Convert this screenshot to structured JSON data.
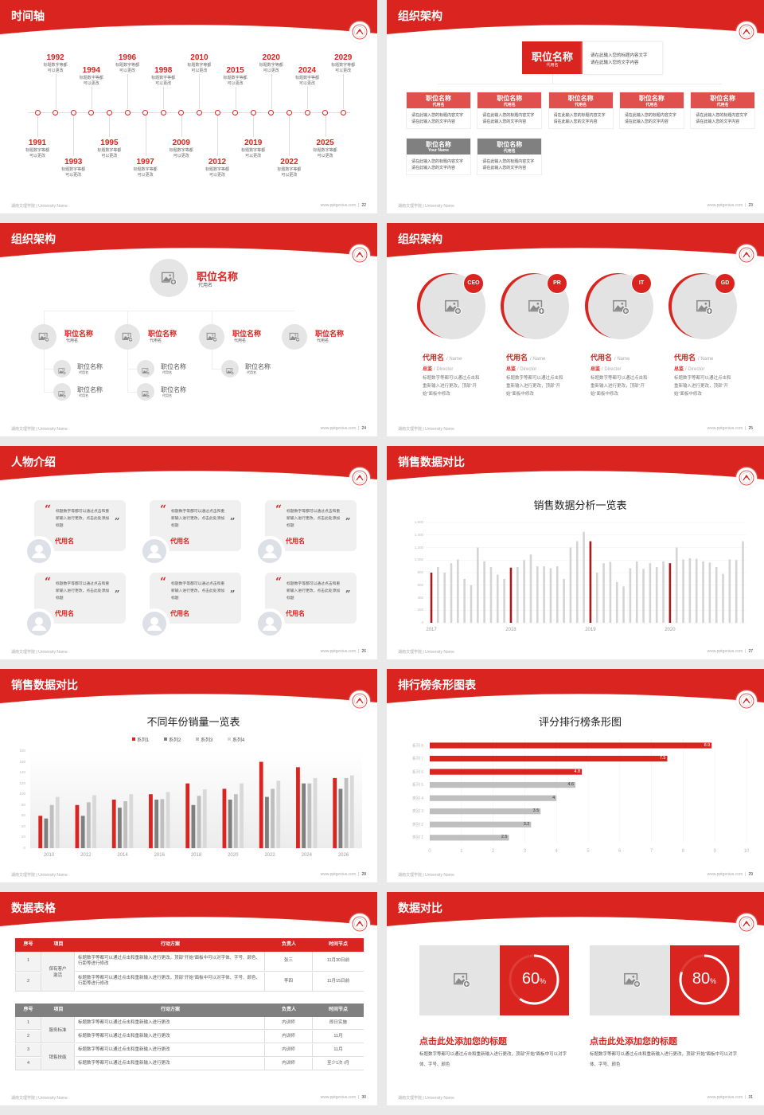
{
  "colors": {
    "accent": "#d9241f",
    "accent_dark": "#a8191a",
    "card_red": "#e0504c",
    "gray": "#808080",
    "light_gray": "#c8c8c8",
    "bg": "#e9e9e9"
  },
  "footer": {
    "school": "湖南文理学院 | University Name",
    "site": "www.pptgenius.com"
  },
  "slides": [
    {
      "type": "timeline",
      "title": "时间轴",
      "page": "22",
      "items": [
        {
          "year": "1991",
          "desc": "标题数字等都可以更改"
        },
        {
          "year": "1992",
          "desc": "标题数字等都可以更改"
        },
        {
          "year": "1993",
          "desc": "标题数字等都可以更改"
        },
        {
          "year": "1994",
          "desc": "标题数字等都可以更改"
        },
        {
          "year": "1995",
          "desc": "标题数字等都可以更改"
        },
        {
          "year": "1996",
          "desc": "标题数字等都可以更改"
        },
        {
          "year": "1997",
          "desc": "标题数字等都可以更改"
        },
        {
          "year": "1998",
          "desc": "标题数字等都可以更改"
        },
        {
          "year": "2009",
          "desc": "标题数字等都可以更改"
        },
        {
          "year": "2010",
          "desc": "标题数字等都可以更改"
        },
        {
          "year": "2012",
          "desc": "标题数字等都可以更改"
        },
        {
          "year": "2015",
          "desc": "标题数字等都可以更改"
        },
        {
          "year": "2019",
          "desc": "标题数字等都可以更改"
        },
        {
          "year": "2020",
          "desc": "标题数字等都可以更改"
        },
        {
          "year": "2022",
          "desc": "标题数字等都可以更改"
        },
        {
          "year": "2024",
          "desc": "标题数字等都可以更改"
        },
        {
          "year": "2025",
          "desc": "标题数字等都可以更改"
        },
        {
          "year": "2029",
          "desc": "标题数字等都可以更改"
        }
      ]
    },
    {
      "type": "org_boxes",
      "title": "组织架构",
      "page": "23",
      "top": {
        "title": "职位名称",
        "sub": "代用名",
        "desc": [
          "请在此输入您的标题内容文字",
          "请在此输入您的文字内容"
        ]
      },
      "cards": [
        {
          "title": "职位名称",
          "sub": "代用名",
          "desc": [
            "请在此输入您的标题内容文字",
            "请在此输入您的文字内容"
          ],
          "style": "red"
        },
        {
          "title": "职位名称",
          "sub": "代用名",
          "desc": [
            "请在此输入您的标题内容文字",
            "请在此输入您的文字内容"
          ],
          "style": "red"
        },
        {
          "title": "职位名称",
          "sub": "代用名",
          "desc": [
            "请在此输入您的标题内容文字",
            "请在此输入您的文字内容"
          ],
          "style": "red"
        },
        {
          "title": "职位名称",
          "sub": "代用名",
          "desc": [
            "请在此输入您的标题内容文字",
            "请在此输入您的文字内容"
          ],
          "style": "red"
        },
        {
          "title": "职位名称",
          "sub": "代用名",
          "desc": [
            "请在此输入您的标题内容文字",
            "请在此输入您的文字内容"
          ],
          "style": "red"
        },
        {
          "title": "职位名称",
          "sub": "Your Name",
          "desc": [
            "请在此输入您的标题内容文字",
            "请在此输入您的文字内容"
          ],
          "style": "gray"
        },
        {
          "title": "职位名称",
          "sub": "代用名",
          "desc": [
            "请在此输入您的标题内容文字",
            "请在此输入您的文字内容"
          ],
          "style": "gray"
        }
      ]
    },
    {
      "type": "org_circles",
      "title": "组织架构",
      "page": "24",
      "head": {
        "title": "职位名称",
        "sub": "代用名"
      },
      "branches": [
        {
          "title": "职位名称",
          "sub": "代用名",
          "children": [
            {
              "title": "职位名称",
              "sub": "代用名"
            },
            {
              "title": "职位名称",
              "sub": "代用名"
            }
          ]
        },
        {
          "title": "职位名称",
          "sub": "代用名",
          "children": [
            {
              "title": "职位名称",
              "sub": "代用名"
            },
            {
              "title": "职位名称",
              "sub": "代用名"
            }
          ]
        },
        {
          "title": "职位名称",
          "sub": "代用名",
          "children": [
            {
              "title": "职位名称",
              "sub": "代用名"
            }
          ]
        },
        {
          "title": "职位名称",
          "sub": "代用名",
          "children": []
        }
      ]
    },
    {
      "type": "team",
      "title": "组织架构",
      "page": "25",
      "members": [
        {
          "badge": "CEO",
          "name": "代用名",
          "name_en": "/ Name",
          "role": "总监",
          "role_en": "/  Director",
          "desc": "标题数字等都可以通过点击和重新输入进行更改，顶部“开始”面板中修改"
        },
        {
          "badge": "PR",
          "name": "代用名",
          "name_en": "/ Name",
          "role": "总监",
          "role_en": "/  Director",
          "desc": "标题数字等都可以通过点击和重新输入进行更改，顶部“开始”面板中修改"
        },
        {
          "badge": "IT",
          "name": "代用名",
          "name_en": "/ Name",
          "role": "总监",
          "role_en": "/  Director",
          "desc": "标题数字等都可以通过点击和重新输入进行更改，顶部“开始”面板中修改"
        },
        {
          "badge": "GD",
          "name": "代用名",
          "name_en": "/ Name",
          "role": "总监",
          "role_en": "/  Director",
          "desc": "标题数字等都可以通过点击和重新输入进行更改，顶部“开始”面板中修改"
        }
      ]
    },
    {
      "type": "people",
      "title": "人物介绍",
      "page": "26",
      "cards": [
        {
          "quote": "标题数字等都可以通过点击和重新输入进行更改，点击此处添加标题",
          "name": "代用名"
        },
        {
          "quote": "标题数字等都可以通过点击和重新输入进行更改，点击此处添加标题",
          "name": "代用名"
        },
        {
          "quote": "标题数字等都可以通过点击和重新输入进行更改，点击此处添加标题",
          "name": "代用名"
        },
        {
          "quote": "标题数字等都可以通过点击和重新输入进行更改，点击此处添加标题",
          "name": "代用名"
        },
        {
          "quote": "标题数字等都可以通过点击和重新输入进行更改，点击此处添加标题",
          "name": "代用名"
        },
        {
          "quote": "标题数字等都可以通过点击和重新输入进行更改，点击此处添加标题",
          "name": "代用名"
        }
      ]
    },
    {
      "type": "chart",
      "chart": 0,
      "title": "销售数据对比",
      "page": "27"
    },
    {
      "type": "chart",
      "chart": 1,
      "title": "销售数据对比",
      "page": "28"
    },
    {
      "type": "chart",
      "chart": 2,
      "title": "排行榜条形图表",
      "page": "29"
    },
    {
      "type": "tables",
      "title": "数据表格",
      "page": "30",
      "tables": [
        {
          "headers": [
            "序号",
            "项目",
            "行动方案",
            "负责人",
            "时间节点"
          ],
          "header_color": "red",
          "groups": [
            {
              "project": "保有客户激活",
              "rows": [
                [
                  "1",
                  "标题数字等都可以通过点击和重新输入进行更改，顶部“开始”面板中可以对字体、字号、颜色、行距等进行修改",
                  "张三",
                  "11月30日前"
                ],
                [
                  "2",
                  "标题数字等都可以通过点击和重新输入进行更改，顶部“开始”面板中可以对字体、字号、颜色、行距等进行修改",
                  "李四",
                  "11月15日前"
                ]
              ]
            }
          ]
        },
        {
          "headers": [
            "序号",
            "项目",
            "行动方案",
            "负责人",
            "时间节点"
          ],
          "header_color": "gray",
          "groups": [
            {
              "project": "服务标准",
              "rows": [
                [
                  "1",
                  "标题数字等都可以通过点击和重新输入进行更改",
                  "内训师",
                  "即日实施"
                ],
                [
                  "2",
                  "标题数字等都可以通过点击和重新输入进行更改",
                  "内训师",
                  "11月"
                ]
              ]
            },
            {
              "project": "销售技能",
              "rows": [
                [
                  "3",
                  "标题数字等都可以通过点击和重新输入进行更改",
                  "内训师",
                  "11月"
                ],
                [
                  "4",
                  "标题数字等都可以通过点击和重新输入进行更改",
                  "内训师",
                  "至少1次 /月"
                ]
              ]
            }
          ]
        }
      ]
    },
    {
      "type": "compare",
      "title": "数据对比",
      "page": "31",
      "items": [
        {
          "percent": 60,
          "value": "60",
          "unit": "%",
          "title": "点击此处添加您的标题",
          "desc": "标题数字等都可以通过点击和重新输入进行更改，顶部“开始”面板中可以对字体、字号、颜色"
        },
        {
          "percent": 80,
          "value": "80",
          "unit": "%",
          "title": "点击此处添加您的标题",
          "desc": "标题数字等都可以通过点击和重新输入进行更改，顶部“开始”面板中可以对字体、字号、颜色"
        }
      ]
    }
  ],
  "chart_data": [
    {
      "type": "bar",
      "title": "销售数据分析一览表",
      "xlabel": "",
      "ylabel": "",
      "ylim": [
        0,
        1600
      ],
      "yticks": [
        "0",
        "200",
        "400",
        "600",
        "800",
        "1,000",
        "1,200",
        "1,400",
        "1,600"
      ],
      "x_tick_labels": [
        "2017",
        "2018",
        "2019",
        "2020"
      ],
      "grid": true,
      "highlight": "first month of each year in red, others light gray",
      "values": [
        800,
        890,
        800,
        950,
        1010,
        700,
        600,
        1200,
        980,
        890,
        770,
        700,
        880,
        890,
        1000,
        1090,
        900,
        900,
        870,
        900,
        700,
        1200,
        1300,
        1450,
        1300,
        800,
        950,
        970,
        650,
        580,
        870,
        980,
        860,
        950,
        890,
        980,
        950,
        1200,
        1010,
        1030,
        1020,
        980,
        960,
        890,
        780,
        1010,
        1000,
        1300
      ]
    },
    {
      "type": "bar",
      "title": "不同年份销量一览表",
      "xlabel": "",
      "ylabel": "",
      "ylim": [
        0,
        180
      ],
      "yticks": [
        "0",
        "20",
        "40",
        "60",
        "80",
        "100",
        "120",
        "140",
        "160",
        "180"
      ],
      "categories": [
        "2010",
        "2012",
        "2014",
        "2016",
        "2018",
        "2020",
        "2022",
        "2024",
        "2026"
      ],
      "legend": "top",
      "grid": false,
      "series": [
        {
          "name": "系列1",
          "color": "#d9241f",
          "values": [
            60,
            80,
            90,
            100,
            120,
            110,
            160,
            150,
            130
          ]
        },
        {
          "name": "系列2",
          "color": "#7f7f7f",
          "values": [
            55,
            60,
            75,
            90,
            80,
            90,
            95,
            120,
            110
          ]
        },
        {
          "name": "系列3",
          "color": "#bfbfbf",
          "values": [
            80,
            85,
            87,
            91,
            97,
            100,
            110,
            120,
            130
          ]
        },
        {
          "name": "系列4",
          "color": "#d9d9d9",
          "values": [
            95,
            98,
            100,
            104,
            109,
            120,
            125,
            130,
            135
          ]
        }
      ]
    },
    {
      "type": "bar",
      "orientation": "horizontal",
      "title": "评分排行榜条形图",
      "xlabel": "",
      "ylabel": "",
      "xlim": [
        0,
        10
      ],
      "xticks": [
        "0",
        "1",
        "2",
        "3",
        "4",
        "5",
        "6",
        "7",
        "8",
        "9",
        "10"
      ],
      "grid": true,
      "categories": [
        "类别 1",
        "类别 2",
        "类别 3",
        "类别 4",
        "系列 5",
        "系列 6",
        "系列 7",
        "系列 8"
      ],
      "values": [
        2.5,
        3.2,
        3.5,
        4,
        4.6,
        4.8,
        7.5,
        8.9
      ],
      "data_labels": [
        "2.5",
        "3.2",
        "3.5",
        "4",
        "4.6",
        "4.8",
        "7.5",
        "8.9"
      ],
      "bar_colors": [
        "#bfbfbf",
        "#bfbfbf",
        "#bfbfbf",
        "#bfbfbf",
        "#bfbfbf",
        "#d9241f",
        "#d9241f",
        "#d9241f"
      ]
    }
  ]
}
